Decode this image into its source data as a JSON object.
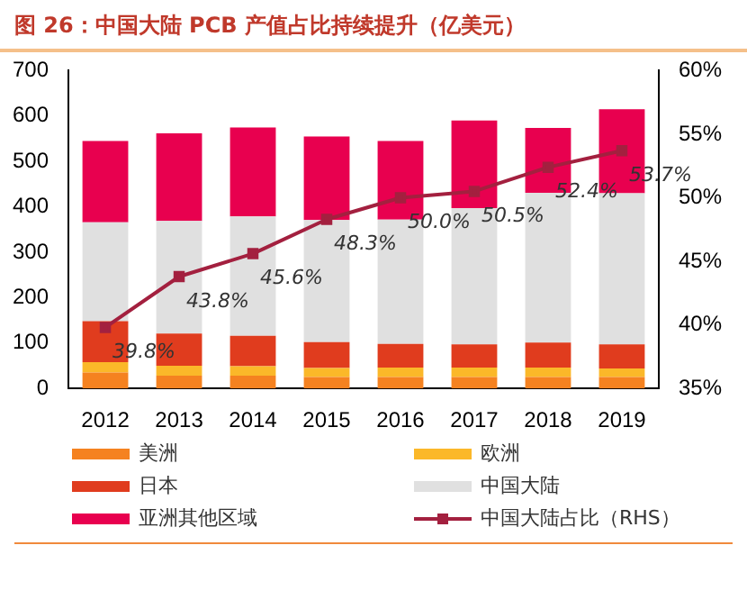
{
  "chart_data": {
    "type": "bar",
    "title": "图 26：中国大陆 PCB 产值占比持续提升（亿美元）",
    "categories": [
      "2012",
      "2013",
      "2014",
      "2015",
      "2016",
      "2017",
      "2018",
      "2019"
    ],
    "stacked": true,
    "series": [
      {
        "name": "美洲",
        "color": "#f58220",
        "values": [
          35,
          28,
          28,
          25,
          25,
          25,
          25,
          25
        ]
      },
      {
        "name": "欧洲",
        "color": "#fbb829",
        "values": [
          23,
          22,
          21,
          20,
          21,
          21,
          21,
          19
        ]
      },
      {
        "name": "日本",
        "color": "#e03c1e",
        "values": [
          90,
          71,
          67,
          57,
          52,
          51,
          55,
          53
        ]
      },
      {
        "name": "中国大陆",
        "color": "#e0e0e0",
        "values": [
          218,
          248,
          263,
          269,
          274,
          300,
          330,
          333
        ]
      },
      {
        "name": "亚洲其他区域",
        "color": "#e8004f",
        "values": [
          179,
          193,
          196,
          184,
          173,
          193,
          143,
          185
        ]
      },
      {
        "name": "中国大陆占比（RHS）",
        "type": "line",
        "axis": "y2",
        "color": "#a3203f",
        "marker": "square",
        "values": [
          39.8,
          43.8,
          45.6,
          48.3,
          50.0,
          50.5,
          52.4,
          53.7
        ],
        "value_labels": [
          "39.8%",
          "43.8%",
          "45.6%",
          "48.3%",
          "50.0%",
          "50.5%",
          "52.4%",
          "53.7%"
        ]
      }
    ],
    "ylim": [
      0,
      700
    ],
    "yticks": [
      0,
      100,
      200,
      300,
      400,
      500,
      600,
      700
    ],
    "y2lim": [
      35,
      60
    ],
    "y2ticks": [
      {
        "value": 35,
        "label": "35%"
      },
      {
        "value": 40,
        "label": "40%"
      },
      {
        "value": 45,
        "label": "45%"
      },
      {
        "value": 50,
        "label": "50%"
      },
      {
        "value": 55,
        "label": "55%"
      },
      {
        "value": 60,
        "label": "60%"
      }
    ],
    "grid": false,
    "legend": "bottom"
  }
}
